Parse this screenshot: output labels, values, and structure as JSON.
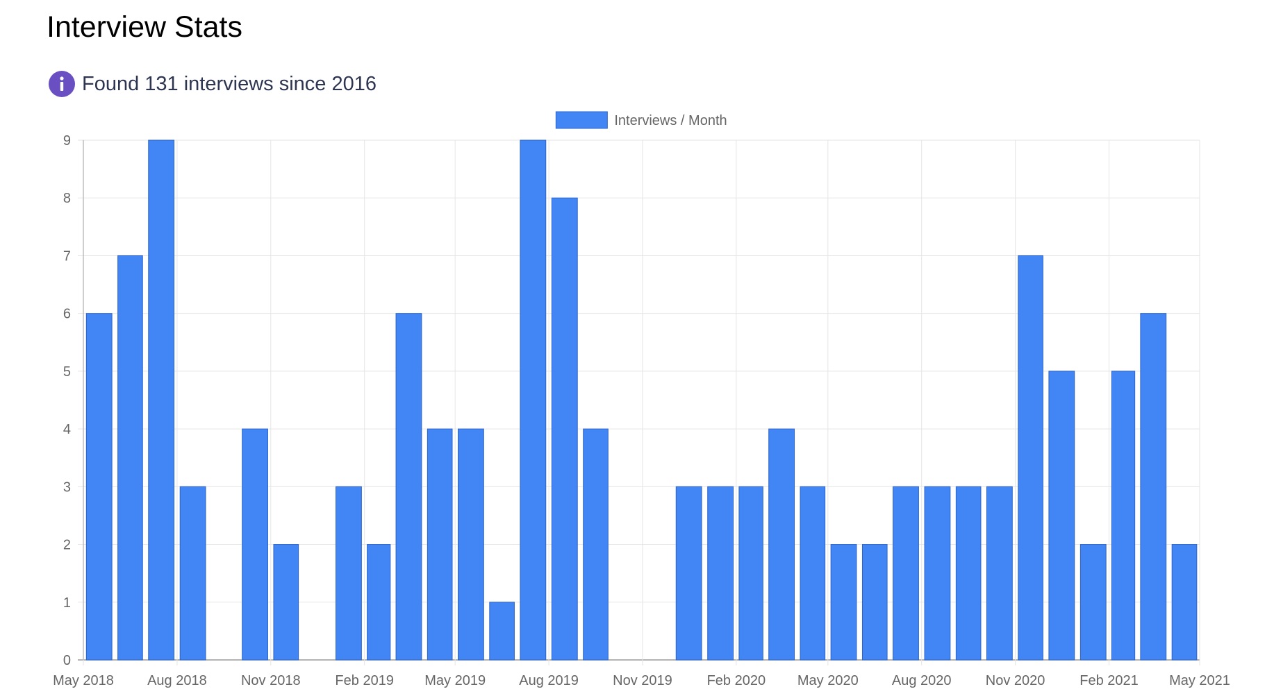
{
  "page": {
    "title": "Interview Stats",
    "info_text": "Found 131 interviews since 2016",
    "info_icon": "info-icon",
    "info_icon_color": "#6a4fc3"
  },
  "chart_data": {
    "type": "bar",
    "title": "",
    "xlabel": "",
    "ylabel": "",
    "ylim": [
      0,
      9
    ],
    "yticks": [
      0,
      1,
      2,
      3,
      4,
      5,
      6,
      7,
      8,
      9
    ],
    "grid": true,
    "legend_position": "top-center",
    "x_axis_type": "time",
    "x_range": [
      "2018-05",
      "2021-05"
    ],
    "x_tick_labels": [
      {
        "month": "2018-05",
        "label": "May 2018"
      },
      {
        "month": "2018-08",
        "label": "Aug 2018"
      },
      {
        "month": "2018-11",
        "label": "Nov 2018"
      },
      {
        "month": "2019-02",
        "label": "Feb 2019"
      },
      {
        "month": "2019-05",
        "label": "May 2019"
      },
      {
        "month": "2019-08",
        "label": "Aug 2019"
      },
      {
        "month": "2019-11",
        "label": "Nov 2019"
      },
      {
        "month": "2020-02",
        "label": "Feb 2020"
      },
      {
        "month": "2020-05",
        "label": "May 2020"
      },
      {
        "month": "2020-08",
        "label": "Aug 2020"
      },
      {
        "month": "2020-11",
        "label": "Nov 2020"
      },
      {
        "month": "2021-02",
        "label": "Feb 2021"
      },
      {
        "month": "2021-05",
        "label": "May 2021"
      }
    ],
    "categories": [
      "2018-05",
      "2018-06",
      "2018-07",
      "2018-08",
      "2018-09",
      "2018-10",
      "2018-11",
      "2018-12",
      "2019-01",
      "2019-02",
      "2019-03",
      "2019-04",
      "2019-05",
      "2019-06",
      "2019-07",
      "2019-08",
      "2019-09",
      "2019-10",
      "2019-11",
      "2019-12",
      "2020-01",
      "2020-02",
      "2020-03",
      "2020-04",
      "2020-05",
      "2020-06",
      "2020-07",
      "2020-08",
      "2020-09",
      "2020-10",
      "2020-11",
      "2020-12",
      "2021-01",
      "2021-02",
      "2021-03",
      "2021-04"
    ],
    "series": [
      {
        "name": "Interviews / Month",
        "color": "#4285f4",
        "border_color": "#2b63c9",
        "values": [
          6,
          7,
          9,
          3,
          0,
          4,
          2,
          0,
          3,
          2,
          6,
          4,
          4,
          1,
          9,
          8,
          4,
          0,
          0,
          3,
          3,
          3,
          4,
          3,
          2,
          2,
          3,
          3,
          3,
          3,
          7,
          5,
          2,
          5,
          6,
          2
        ]
      }
    ]
  }
}
